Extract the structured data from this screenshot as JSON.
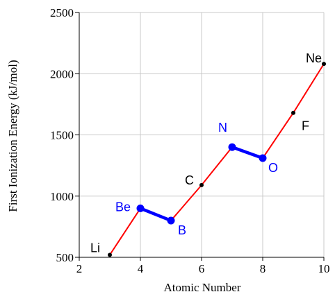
{
  "chart_data": {
    "type": "line",
    "xlabel": "Atomic Number",
    "ylabel": "First Ionization Energy (kJ/mol)",
    "xlim": [
      2,
      10
    ],
    "ylim": [
      500,
      2500
    ],
    "grid": true,
    "x_ticks": [
      {
        "value": 2,
        "label": "2"
      },
      {
        "value": 4,
        "label": "4"
      },
      {
        "value": 6,
        "label": "6"
      },
      {
        "value": 8,
        "label": "8"
      },
      {
        "value": 10,
        "label": "10"
      }
    ],
    "y_ticks": [
      {
        "value": 500,
        "label": "500"
      },
      {
        "value": 1000,
        "label": "1000"
      },
      {
        "value": 1500,
        "label": "1500"
      },
      {
        "value": 2000,
        "label": "2000"
      },
      {
        "value": 2500,
        "label": "2500"
      }
    ],
    "points": [
      {
        "label": "Li",
        "x": 3,
        "y": 520,
        "color": "#000000",
        "size": "small"
      },
      {
        "label": "Be",
        "x": 4,
        "y": 900,
        "color": "#0000ff",
        "size": "large"
      },
      {
        "label": "B",
        "x": 5,
        "y": 800,
        "color": "#0000ff",
        "size": "large"
      },
      {
        "label": "C",
        "x": 6,
        "y": 1090,
        "color": "#000000",
        "size": "small"
      },
      {
        "label": "N",
        "x": 7,
        "y": 1400,
        "color": "#0000ff",
        "size": "large"
      },
      {
        "label": "O",
        "x": 8,
        "y": 1310,
        "color": "#0000ff",
        "size": "large"
      },
      {
        "label": "F",
        "x": 9,
        "y": 1680,
        "color": "#000000",
        "size": "small"
      },
      {
        "label": "Ne",
        "x": 10,
        "y": 2080,
        "color": "#000000",
        "size": "small"
      }
    ],
    "segments": [
      {
        "from": 0,
        "to": 1,
        "color": "#ff0000",
        "weight": "thin"
      },
      {
        "from": 1,
        "to": 2,
        "color": "#0000ff",
        "weight": "thick"
      },
      {
        "from": 2,
        "to": 3,
        "color": "#ff0000",
        "weight": "thin"
      },
      {
        "from": 3,
        "to": 4,
        "color": "#ff0000",
        "weight": "thin"
      },
      {
        "from": 4,
        "to": 5,
        "color": "#0000ff",
        "weight": "thick"
      },
      {
        "from": 5,
        "to": 6,
        "color": "#ff0000",
        "weight": "thin"
      },
      {
        "from": 6,
        "to": 7,
        "color": "#ff0000",
        "weight": "thin"
      }
    ],
    "colors": {
      "grid": "#c8c8c8",
      "axis": "#000000",
      "trend": "#ff0000",
      "highlight": "#0000ff"
    }
  }
}
